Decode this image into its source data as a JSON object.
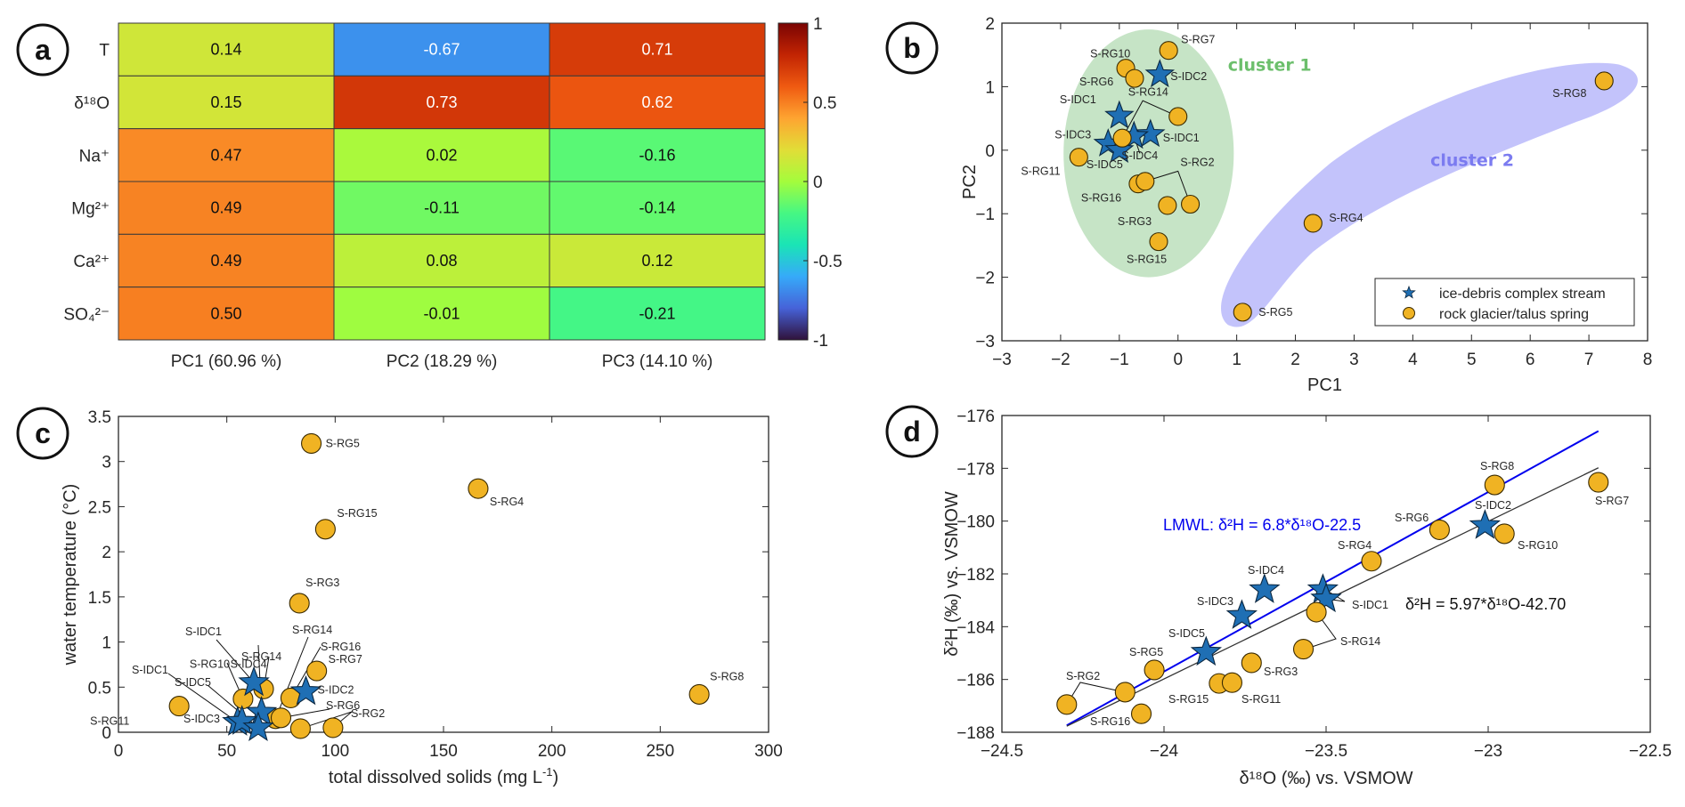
{
  "figure": {
    "panel_letters": [
      "a",
      "b",
      "c",
      "d"
    ]
  },
  "chart_data": [
    {
      "panel": "a",
      "type": "heatmap",
      "title": "",
      "rows": [
        "T",
        "δ¹⁸O",
        "Na⁺",
        "Mg²⁺",
        "Ca²⁺",
        "SO₄²⁻"
      ],
      "row_labels_display": [
        "T",
        "δ¹⁸O",
        "Na⁺",
        "Mg²⁺",
        "Ca²⁺",
        "SO₄²⁻"
      ],
      "columns": [
        "PC1 (60.96 %)",
        "PC2 (18.29 %)",
        "PC3 (14.10 %)"
      ],
      "values": [
        [
          0.14,
          -0.67,
          0.71
        ],
        [
          0.15,
          0.73,
          0.62
        ],
        [
          0.47,
          0.02,
          -0.16
        ],
        [
          0.49,
          -0.11,
          -0.14
        ],
        [
          0.49,
          0.08,
          0.12
        ],
        [
          0.5,
          -0.01,
          -0.21
        ]
      ],
      "value_labels": [
        [
          "0.14",
          "-0.67",
          "0.71"
        ],
        [
          "0.15",
          "0.73",
          "0.62"
        ],
        [
          "0.47",
          "0.02",
          "-0.16"
        ],
        [
          "0.49",
          "-0.11",
          "-0.14"
        ],
        [
          "0.49",
          "0.08",
          "0.12"
        ],
        [
          "0.50",
          "-0.01",
          "-0.21"
        ]
      ],
      "colorbar": {
        "range": [
          -1,
          1
        ],
        "ticks": [
          "1",
          "0.5",
          "0",
          "-0.5",
          "-1"
        ],
        "tick_values": [
          1,
          0.5,
          0,
          -0.5,
          -1
        ],
        "colormap": "turbo"
      }
    },
    {
      "panel": "b",
      "type": "scatter",
      "xlabel": "PC1",
      "ylabel": "PC2",
      "xlim": [
        -3,
        8
      ],
      "ylim": [
        -3,
        2
      ],
      "xticks": [
        -3,
        -2,
        -1,
        0,
        1,
        2,
        3,
        4,
        5,
        6,
        7,
        8
      ],
      "yticks": [
        2,
        1,
        0,
        -1,
        -2,
        -3
      ],
      "legend": {
        "position": "bottom-right",
        "entries": [
          {
            "label": "ice-debris complex stream",
            "marker": "star",
            "color": "#1f6fb4"
          },
          {
            "label": "rock glacier/talus spring",
            "marker": "circle",
            "color": "#f0b323"
          }
        ]
      },
      "clusters": [
        {
          "label": "cluster 1",
          "color": "#6cbf6c",
          "fill": "#c3e3c3"
        },
        {
          "label": "cluster 2",
          "color": "#7b7bf0",
          "fill": "#c0c0fb"
        }
      ],
      "series": [
        {
          "name": "ice-debris complex stream",
          "marker": "star",
          "points": [
            {
              "label": "S-IDC2",
              "x": -0.31,
              "y": 1.19
            },
            {
              "label": "S-IDC1",
              "x": -1.0,
              "y": 0.54
            },
            {
              "label": "S-IDC1",
              "x": -0.47,
              "y": 0.25
            },
            {
              "label": "S-IDC4",
              "x": -0.75,
              "y": 0.22
            },
            {
              "label": "S-IDC3",
              "x": -1.19,
              "y": 0.1
            },
            {
              "label": "S-IDC5",
              "x": -1.0,
              "y": 0.0
            }
          ]
        },
        {
          "name": "rock glacier/talus spring",
          "marker": "circle",
          "points": [
            {
              "label": "S-RG7",
              "x": -0.16,
              "y": 1.57
            },
            {
              "label": "S-RG10",
              "x": -0.89,
              "y": 1.29
            },
            {
              "label": "S-RG6",
              "x": -0.74,
              "y": 1.13
            },
            {
              "label": "S-RG14",
              "x": 0.0,
              "y": 0.53
            },
            {
              "label": "S-RG14",
              "x": -0.95,
              "y": 0.19
            },
            {
              "label": "S-RG11",
              "x": -1.69,
              "y": -0.11
            },
            {
              "label": "S-RG16",
              "x": -0.68,
              "y": -0.53
            },
            {
              "label": "S-RG2",
              "x": -0.56,
              "y": -0.49
            },
            {
              "label": "S-RG2",
              "x": 0.21,
              "y": -0.85
            },
            {
              "label": "S-RG3",
              "x": -0.18,
              "y": -0.87
            },
            {
              "label": "S-RG15",
              "x": -0.33,
              "y": -1.44
            },
            {
              "label": "S-RG5",
              "x": 1.1,
              "y": -2.55
            },
            {
              "label": "S-RG4",
              "x": 2.3,
              "y": -1.15
            },
            {
              "label": "S-RG8",
              "x": 7.26,
              "y": 1.09
            }
          ]
        }
      ]
    },
    {
      "panel": "c",
      "type": "scatter",
      "xlabel": "total dissolved solids (mg L",
      "xlabel_sup": "-1",
      "xlabel_end": ")",
      "ylabel": "water temperature (°C)",
      "xlim": [
        0,
        300
      ],
      "ylim": [
        0,
        3.5
      ],
      "xticks": [
        0,
        50,
        100,
        150,
        200,
        250,
        300
      ],
      "yticks": [
        0,
        0.5,
        1,
        1.5,
        2,
        2.5,
        3,
        3.5
      ],
      "series": [
        {
          "name": "ice-debris complex stream",
          "marker": "star",
          "points": [
            {
              "label": "S-IDC1",
              "x": 62.5,
              "y": 0.55
            },
            {
              "label": "S-IDC2",
              "x": 86.5,
              "y": 0.45
            },
            {
              "label": "S-IDC4",
              "x": 66,
              "y": 0.22
            },
            {
              "label": "S-IDC1",
              "x": 55,
              "y": 0.11
            },
            {
              "label": "S-IDC3",
              "x": 57,
              "y": 0.12
            },
            {
              "label": "S-IDC5",
              "x": 64.5,
              "y": 0.05
            }
          ]
        },
        {
          "name": "rock glacier/talus spring",
          "marker": "circle",
          "points": [
            {
              "label": "S-RG5",
              "x": 89,
              "y": 3.2
            },
            {
              "label": "S-RG15",
              "x": 95.5,
              "y": 2.25
            },
            {
              "label": "S-RG3",
              "x": 83.5,
              "y": 1.43
            },
            {
              "label": "S-RG4",
              "x": 166,
              "y": 2.7
            },
            {
              "label": "S-RG8",
              "x": 268,
              "y": 0.42
            },
            {
              "label": "S-RG7",
              "x": 91.5,
              "y": 0.68
            },
            {
              "label": "S-RG16",
              "x": 79.5,
              "y": 0.38
            },
            {
              "label": "S-RG14",
              "x": 67,
              "y": 0.48
            },
            {
              "label": "S-RG10",
              "x": 57.5,
              "y": 0.37
            },
            {
              "label": "S-RG11",
              "x": 28,
              "y": 0.29
            },
            {
              "label": "S-RG14",
              "x": 72.5,
              "y": 0.15
            },
            {
              "label": "S-RG6",
              "x": 75,
              "y": 0.16
            },
            {
              "label": "S-RG2",
              "x": 84,
              "y": 0.04
            },
            {
              "label": "S-RG2",
              "x": 99,
              "y": 0.05
            }
          ]
        }
      ]
    },
    {
      "panel": "d",
      "type": "scatter",
      "xlabel": "δ¹⁸O (‰) vs. VSMOW",
      "ylabel": "δ²H (‰) vs. VSMOW",
      "xlim": [
        -24.5,
        -22.5
      ],
      "ylim": [
        -188,
        -176
      ],
      "xticks": [
        -24.5,
        -24,
        -23.5,
        -23,
        -22.5
      ],
      "yticks": [
        -176,
        -178,
        -180,
        -182,
        -184,
        -186,
        -188
      ],
      "lines": [
        {
          "name": "LMWL",
          "label": "LMWL: δ²H = 6.8*δ¹⁸O-22.5",
          "slope": 6.8,
          "intercept": -22.5,
          "x_range": [
            -24.3,
            -22.66
          ],
          "color": "#0000ee"
        },
        {
          "name": "fit",
          "label": "δ²H = 5.97*δ¹⁸O-42.70",
          "slope": 5.97,
          "intercept": -42.7,
          "x_range": [
            -24.3,
            -22.66
          ],
          "color": "#333333"
        }
      ],
      "series": [
        {
          "name": "ice-debris complex stream",
          "marker": "star",
          "points": [
            {
              "label": "S-IDC5",
              "x": -23.87,
              "y": -184.97
            },
            {
              "label": "S-IDC3",
              "x": -23.76,
              "y": -183.58
            },
            {
              "label": "S-IDC4",
              "x": -23.69,
              "y": -182.6
            },
            {
              "label": "S-IDC1",
              "x": -23.51,
              "y": -182.6
            },
            {
              "label": "S-IDC1",
              "x": -23.5,
              "y": -182.95
            },
            {
              "label": "S-IDC2",
              "x": -23.01,
              "y": -180.17
            }
          ]
        },
        {
          "name": "rock glacier/talus spring",
          "marker": "circle",
          "points": [
            {
              "label": "S-RG2",
              "x": -24.3,
              "y": -186.95
            },
            {
              "label": "S-RG2",
              "x": -24.12,
              "y": -186.48
            },
            {
              "label": "S-RG5",
              "x": -24.03,
              "y": -185.64
            },
            {
              "label": "S-RG16",
              "x": -24.07,
              "y": -187.3
            },
            {
              "label": "S-RG15",
              "x": -23.83,
              "y": -186.15
            },
            {
              "label": "S-RG11",
              "x": -23.79,
              "y": -186.12
            },
            {
              "label": "S-RG3",
              "x": -23.73,
              "y": -185.37
            },
            {
              "label": "S-RG14",
              "x": -23.53,
              "y": -183.45
            },
            {
              "label": "S-RG14",
              "x": -23.57,
              "y": -184.85
            },
            {
              "label": "S-RG4",
              "x": -23.36,
              "y": -181.52
            },
            {
              "label": "S-RG6",
              "x": -23.15,
              "y": -180.33
            },
            {
              "label": "S-RG10",
              "x": -22.95,
              "y": -180.48
            },
            {
              "label": "S-RG8",
              "x": -22.98,
              "y": -178.63
            },
            {
              "label": "S-RG7",
              "x": -22.66,
              "y": -178.53
            }
          ]
        }
      ]
    }
  ],
  "colors": {
    "star": "#1f6fb4",
    "circle": "#f0b323",
    "axis": "#262626",
    "lmwl": "#0000ee"
  }
}
